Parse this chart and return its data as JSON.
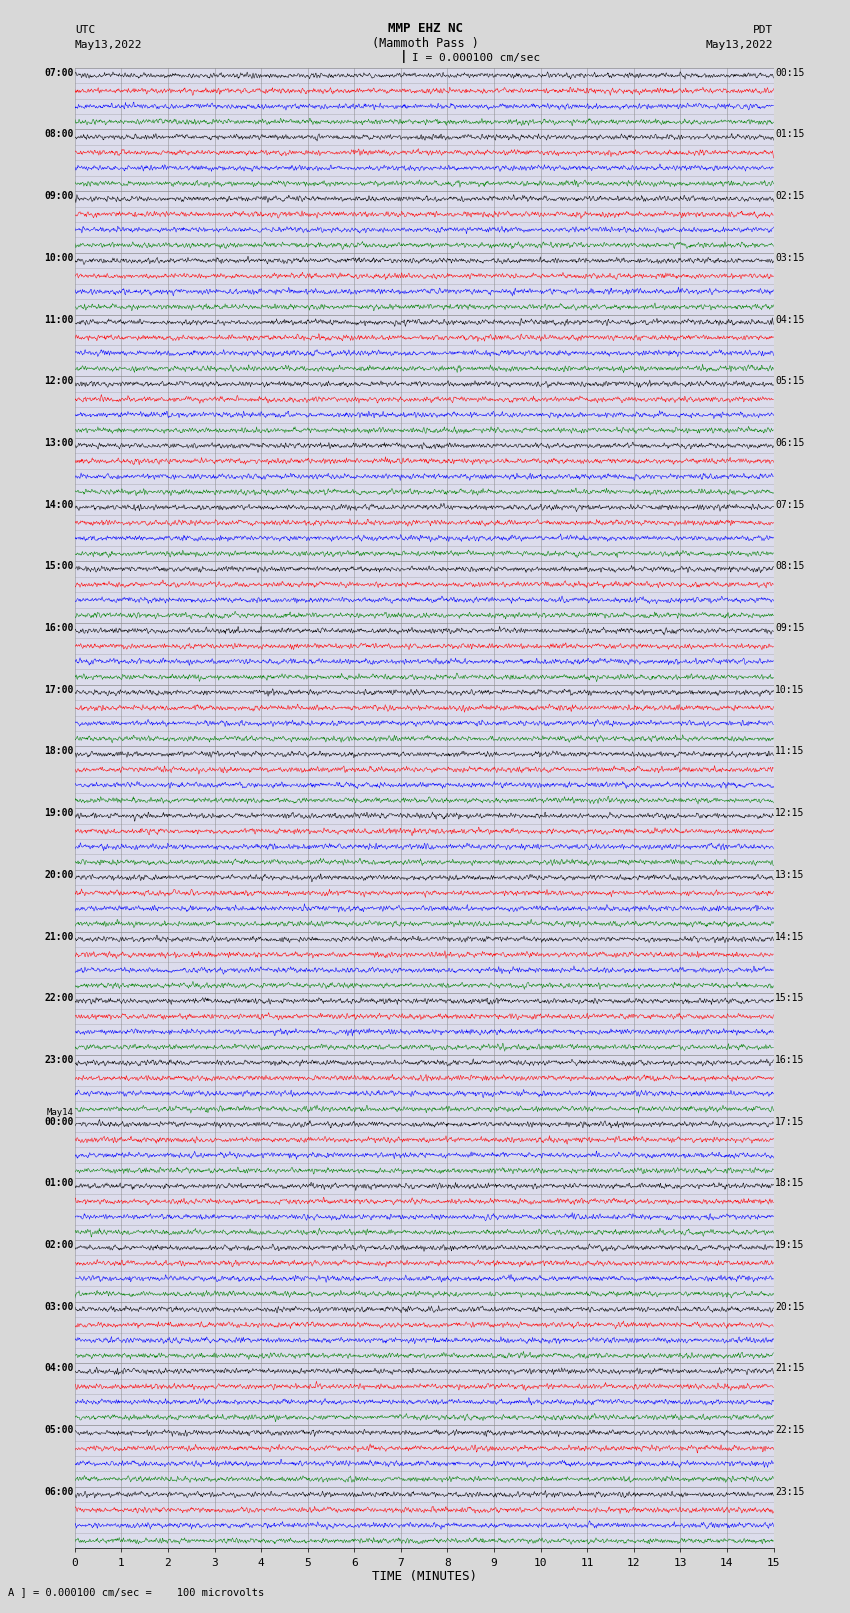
{
  "title_line1": "MMP EHZ NC",
  "title_line2": "(Mammoth Pass )",
  "title_line3": "I = 0.000100 cm/sec",
  "left_header_line1": "UTC",
  "left_header_line2": "May13,2022",
  "right_header_line1": "PDT",
  "right_header_line2": "May13,2022",
  "xlabel": "TIME (MINUTES)",
  "footer": "A ] = 0.000100 cm/sec =    100 microvolts",
  "utc_times": [
    "07:00",
    "08:00",
    "09:00",
    "10:00",
    "11:00",
    "12:00",
    "13:00",
    "14:00",
    "15:00",
    "16:00",
    "17:00",
    "18:00",
    "19:00",
    "20:00",
    "21:00",
    "22:00",
    "23:00",
    "May14\n00:00",
    "01:00",
    "02:00",
    "03:00",
    "04:00",
    "05:00",
    "06:00"
  ],
  "pdt_times": [
    "00:15",
    "01:15",
    "02:15",
    "03:15",
    "04:15",
    "05:15",
    "06:15",
    "07:15",
    "08:15",
    "09:15",
    "10:15",
    "11:15",
    "12:15",
    "13:15",
    "14:15",
    "15:15",
    "16:15",
    "17:15",
    "18:15",
    "19:15",
    "20:15",
    "21:15",
    "22:15",
    "23:15"
  ],
  "n_rows": 24,
  "traces_per_row": 4,
  "colors": [
    "black",
    "red",
    "blue",
    "green"
  ],
  "x_min": 0,
  "x_max": 15,
  "x_ticks": [
    0,
    1,
    2,
    3,
    4,
    5,
    6,
    7,
    8,
    9,
    10,
    11,
    12,
    13,
    14,
    15
  ],
  "background_color": "#d8d8d8",
  "plot_bg_color": "#dcdcec",
  "grid_color": "#888888",
  "fig_width": 8.5,
  "fig_height": 16.13
}
